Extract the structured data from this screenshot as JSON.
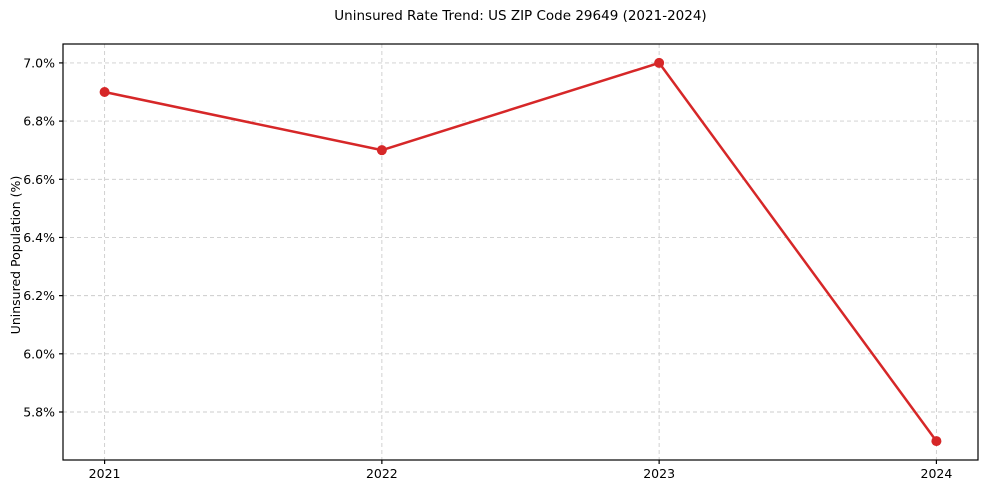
{
  "chart_data": {
    "type": "line",
    "title": "Uninsured Rate Trend: US ZIP Code 29649 (2021-2024)",
    "xlabel": "",
    "ylabel": "Uninsured Population (%)",
    "x": [
      2021,
      2022,
      2023,
      2024
    ],
    "values": [
      6.9,
      6.7,
      7.0,
      5.7
    ],
    "xticks": [
      {
        "value": 2021,
        "label": "2021"
      },
      {
        "value": 2022,
        "label": "2022"
      },
      {
        "value": 2023,
        "label": "2023"
      },
      {
        "value": 2024,
        "label": "2024"
      }
    ],
    "yticks": [
      {
        "value": 5.8,
        "label": "5.8%"
      },
      {
        "value": 6.0,
        "label": "6.0%"
      },
      {
        "value": 6.2,
        "label": "6.2%"
      },
      {
        "value": 6.4,
        "label": "6.4%"
      },
      {
        "value": 6.6,
        "label": "6.6%"
      },
      {
        "value": 6.8,
        "label": "6.8%"
      },
      {
        "value": 7.0,
        "label": "7.0%"
      }
    ],
    "xlim": [
      2020.85,
      2024.15
    ],
    "ylim": [
      5.635,
      7.065
    ],
    "grid": true,
    "grid_style": "dashed",
    "legend_position": "none",
    "colors": {
      "line": "#d62728",
      "marker": "#d62728",
      "grid": "#cccccc",
      "frame": "#000000",
      "background": "#ffffff",
      "text": "#000000"
    },
    "marker": "circle",
    "marker_radius": 5,
    "line_width": 2.5
  }
}
